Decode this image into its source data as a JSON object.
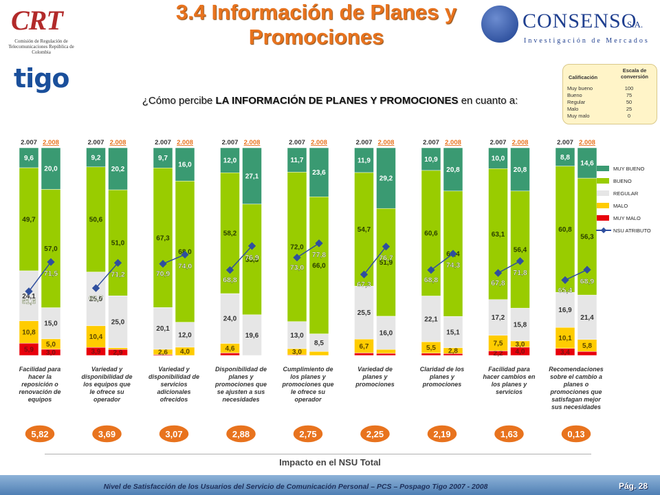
{
  "header": {
    "title": "3.4 Información de Planes y Promociones",
    "crt_logo_text": "CRT",
    "crt_subtitle": "Comisión de Regulación de Telecomunicaciones República de Colombia",
    "consenso_name": "CONSENSO",
    "consenso_sa": "S.A.",
    "consenso_tagline": "Investigación de Mercados",
    "tigo_logo": "tigo"
  },
  "question": {
    "prefix": "¿Cómo percibe ",
    "bold": "LA INFORMACIÓN DE PLANES Y PROMOCIONES",
    "suffix": " en cuanto a:"
  },
  "scale_box": {
    "col1": "Calificación",
    "col2": "Escala de conversión",
    "rows": [
      {
        "label": "Muy bueno",
        "value": "100"
      },
      {
        "label": "Bueno",
        "value": "75"
      },
      {
        "label": "Regular",
        "value": "50"
      },
      {
        "label": "Malo",
        "value": "25"
      },
      {
        "label": "Muy malo",
        "value": "0"
      }
    ]
  },
  "chart_data": {
    "type": "bar",
    "stacked": "100%",
    "year_labels": [
      "2.007",
      "2.008"
    ],
    "colors": {
      "MUY BUENO": "#3a9a72",
      "BUENO": "#99cc00",
      "REGULAR": "#e6e6e6",
      "MALO": "#ffcc00",
      "MUY MALO": "#e8000b",
      "NSU ATRIBUTO": "#2f4f9f"
    },
    "legend": [
      "MUY BUENO",
      "BUENO",
      "REGULAR",
      "MALO",
      "MUY MALO",
      "NSU ATRIBUTO"
    ],
    "legend_position": "right",
    "categories": [
      {
        "label": "Facilidad para hacer la reposición o renovación de equipos",
        "impact": "5,82",
        "y2007": {
          "muy_malo": "5,9",
          "malo": "10,8",
          "regular": "24,1",
          "bueno": "49,7",
          "muy_bueno": "9,6"
        },
        "y2008": {
          "muy_malo": "3,0",
          "malo": "5,0",
          "regular": "15,0",
          "bueno": "57,0",
          "muy_bueno": "20,0"
        },
        "nsu": [
          "61,6",
          "71,5"
        ]
      },
      {
        "label": "Variedad y disponibilidad de los equipos que le ofrece su operador",
        "impact": "3,69",
        "y2007": {
          "muy_malo": "3,9",
          "malo": "10,4",
          "regular": "25,9",
          "bueno": "50,6",
          "muy_bueno": "9,2"
        },
        "y2008": {
          "muy_malo": "2,9",
          "malo": "0,8",
          "regular": "25,0",
          "bueno": "51,0",
          "muy_bueno": "20,2"
        },
        "nsu": [
          "62,7",
          "71,2"
        ]
      },
      {
        "label": "Variedad y disponibilidad de servicios adicionales ofrecidos",
        "impact": "3,07",
        "y2007": {
          "muy_malo": "0,4",
          "malo": "2,6",
          "regular": "20,1",
          "bueno": "67,3",
          "muy_bueno": "9,7"
        },
        "y2008": {
          "muy_malo": "0,0",
          "malo": "4,0",
          "regular": "12,0",
          "bueno": "68,0",
          "muy_bueno": "16,0"
        },
        "nsu": [
          "70,9",
          "74,0"
        ]
      },
      {
        "label": "Disponibilidad de planes y promociones que se ajusten a sus necesidades",
        "impact": "2,88",
        "y2007": {
          "muy_malo": "1,2",
          "malo": "4,6",
          "regular": "24,0",
          "bueno": "58,2",
          "muy_bueno": "12,0"
        },
        "y2008": {
          "muy_malo": "0,0",
          "malo": "0,0",
          "regular": "19,6",
          "bueno": "53,3",
          "muy_bueno": "27,1"
        },
        "nsu": [
          "68,8",
          "76,9"
        ]
      },
      {
        "label": "Cumplimiento de los planes y promociones que le ofrece su operador",
        "impact": "2,75",
        "y2007": {
          "muy_malo": "0,3",
          "malo": "3,0",
          "regular": "13,0",
          "bueno": "72,0",
          "muy_bueno": "11,7"
        },
        "y2008": {
          "muy_malo": "0,0",
          "malo": "1,9",
          "regular": "8,5",
          "bueno": "66,0",
          "muy_bueno": "23,6"
        },
        "nsu": [
          "73,0",
          "77,8"
        ]
      },
      {
        "label": "Variedad de planes y promociones",
        "impact": "2,25",
        "y2007": {
          "muy_malo": "1,2",
          "malo": "6,7",
          "regular": "25,5",
          "bueno": "54,7",
          "muy_bueno": "11,9"
        },
        "y2008": {
          "muy_malo": "1,0",
          "malo": "1,9",
          "regular": "16,0",
          "bueno": "51,9",
          "muy_bueno": "29,2"
        },
        "nsu": [
          "67,3",
          "76,7"
        ]
      },
      {
        "label": "Claridad de los planes y promociones",
        "impact": "2,19",
        "y2007": {
          "muy_malo": "1,1",
          "malo": "5,5",
          "regular": "22,1",
          "bueno": "60,6",
          "muy_bueno": "10,9"
        },
        "y2008": {
          "muy_malo": "0,9",
          "malo": "2,8",
          "regular": "15,1",
          "bueno": "60,4",
          "muy_bueno": "20,8"
        },
        "nsu": [
          "68,8",
          "74,3"
        ]
      },
      {
        "label": "Facilidad para hacer cambios en los planes y servicios",
        "impact": "1,63",
        "y2007": {
          "muy_malo": "2,2",
          "malo": "7,5",
          "regular": "17,2",
          "bueno": "63,1",
          "muy_bueno": "10,0"
        },
        "y2008": {
          "muy_malo": "4,0",
          "malo": "3,0",
          "regular": "15,8",
          "bueno": "56,4",
          "muy_bueno": "20,8"
        },
        "nsu": [
          "67,8",
          "71,8"
        ]
      },
      {
        "label": "Recomendaciones sobre el cambio a planes o promociones que satisfagan mejor sus necesidades",
        "impact": "0,13",
        "y2007": {
          "muy_malo": "3,4",
          "malo": "10,1",
          "regular": "16,9",
          "bueno": "60,8",
          "muy_bueno": "8,8"
        },
        "y2008": {
          "muy_malo": "1,9",
          "malo": "5,8",
          "regular": "21,4",
          "bueno": "56,3",
          "muy_bueno": "14,6"
        },
        "nsu": [
          "65,4",
          "68,9"
        ]
      }
    ]
  },
  "impact_title": "Impacto en el NSU Total",
  "footer": {
    "text": "Nivel de Satisfacción de los Usuarios del Servicio de Comunicación Personal – PCS – Pospago Tigo 2007 - 2008",
    "page": "Pág. 28"
  }
}
